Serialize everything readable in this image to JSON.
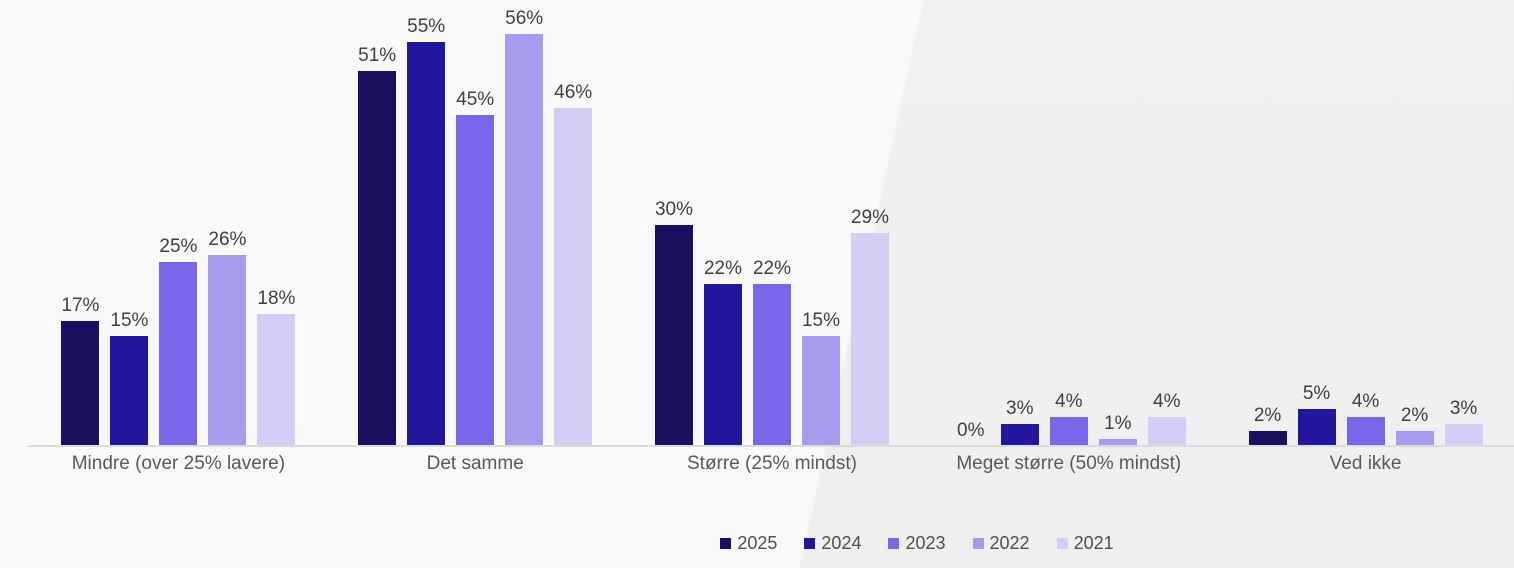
{
  "chart_data": {
    "type": "bar",
    "categories": [
      "Mindre (over 25% lavere)",
      "Det samme",
      "Større (25% mindst)",
      "Meget større (50% mindst)",
      "Ved ikke"
    ],
    "series": [
      {
        "name": "2025",
        "color": "#1a1060",
        "values": [
          17,
          51,
          30,
          0,
          2
        ]
      },
      {
        "name": "2024",
        "color": "#22169c",
        "values": [
          15,
          55,
          22,
          3,
          5
        ]
      },
      {
        "name": "2023",
        "color": "#7668e8",
        "values": [
          25,
          45,
          22,
          4,
          4
        ]
      },
      {
        "name": "2022",
        "color": "#a59cf0",
        "values": [
          26,
          56,
          15,
          1,
          2
        ]
      },
      {
        "name": "2021",
        "color": "#d2cef5",
        "values": [
          18,
          46,
          29,
          4,
          3
        ]
      }
    ],
    "value_suffix": "%",
    "title": "",
    "xlabel": "",
    "ylabel": "",
    "ylim": [
      0,
      60
    ],
    "grid": false,
    "legend_position": "bottom",
    "background_colors": {
      "wedge_left": "#f9f9fa",
      "base_right": "#f0f0f1",
      "axis_line": "#dcdcdc"
    }
  }
}
